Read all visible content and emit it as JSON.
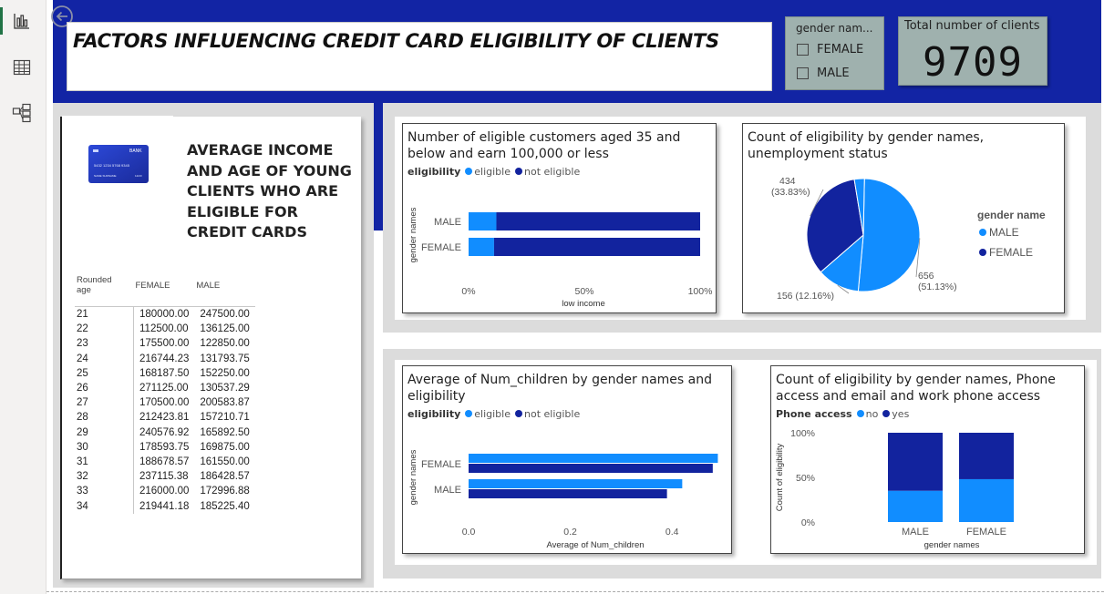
{
  "rail": {
    "items": [
      "report-view",
      "table-view",
      "model-view"
    ]
  },
  "header": {
    "title": "FACTORS INFLUENCING CREDIT CARD ELIGIBILITY OF CLIENTS"
  },
  "slicer": {
    "header": "gender nam...",
    "options": [
      "FEMALE",
      "MALE"
    ]
  },
  "kpi": {
    "label": "Total number of clients",
    "value": "9709"
  },
  "young_panel": {
    "heading": "AVERAGE INCOME AND AGE OF YOUNG CLIENTS WHO ARE ELIGIBLE FOR CREDIT CARDS",
    "card_image": {
      "brand": "BANK",
      "number": "5432 1234 5768 9345",
      "name": "NAME SURNAME",
      "exp": "12/23"
    },
    "columns": [
      "Rounded age",
      "FEMALE",
      "MALE"
    ],
    "rows": [
      [
        "21",
        "180000.00",
        "247500.00"
      ],
      [
        "22",
        "112500.00",
        "136125.00"
      ],
      [
        "23",
        "175500.00",
        "122850.00"
      ],
      [
        "24",
        "216744.23",
        "131793.75"
      ],
      [
        "25",
        "168187.50",
        "152250.00"
      ],
      [
        "26",
        "271125.00",
        "130537.29"
      ],
      [
        "27",
        "170500.00",
        "200583.87"
      ],
      [
        "28",
        "212423.81",
        "157210.71"
      ],
      [
        "29",
        "240576.92",
        "165892.50"
      ],
      [
        "30",
        "178593.75",
        "169875.00"
      ],
      [
        "31",
        "188678.57",
        "161550.00"
      ],
      [
        "32",
        "237115.38",
        "186428.57"
      ],
      [
        "33",
        "216000.00",
        "172996.88"
      ],
      [
        "34",
        "219441.18",
        "185225.40"
      ]
    ]
  },
  "colors": {
    "light": "#118dff",
    "dark": "#12239e"
  },
  "chart_data": [
    {
      "type": "bar",
      "orientation": "horizontal",
      "stacked": "100%",
      "title": "Number of eligible customers aged 35 and below and earn 100,000 or less",
      "legend_title": "eligibility",
      "legend_position": "top-left",
      "ylabel": "gender names",
      "xlabel": "low income",
      "categories": [
        "MALE",
        "FEMALE"
      ],
      "series": [
        {
          "name": "eligible",
          "values": [
            0.12,
            0.11
          ]
        },
        {
          "name": "not eligible",
          "values": [
            0.88,
            0.89
          ]
        }
      ],
      "xticks": [
        "0%",
        "50%",
        "100%"
      ],
      "xlim": [
        0,
        1
      ]
    },
    {
      "type": "pie",
      "title": "Count of eligibility by gender names, unemployment status",
      "legend_title": "gender name",
      "legend_position": "right",
      "legend": [
        "MALE",
        "FEMALE"
      ],
      "slices": [
        {
          "label": "656",
          "pct": "(51.13%)",
          "value": 656,
          "color": "#118dff"
        },
        {
          "label": "156 (12.16%)",
          "pct": "",
          "value": 156,
          "color": "#118dff"
        },
        {
          "label": "434",
          "pct": "(33.83%)",
          "value": 434,
          "color": "#12239e"
        },
        {
          "label": "",
          "pct": "",
          "value": 37,
          "color": "#118dff"
        }
      ]
    },
    {
      "type": "bar",
      "orientation": "horizontal",
      "title": "Average of Num_children by gender names and eligibility",
      "legend_title": "eligibility",
      "legend_position": "top-left",
      "ylabel": "gender names",
      "xlabel": "Average of Num_children",
      "categories": [
        "FEMALE",
        "MALE"
      ],
      "series": [
        {
          "name": "eligible",
          "values": [
            0.49,
            0.42
          ]
        },
        {
          "name": "not eligible",
          "values": [
            0.48,
            0.39
          ]
        }
      ],
      "xticks": [
        "0.0",
        "0.2",
        "0.4"
      ],
      "xlim": [
        0,
        0.5
      ]
    },
    {
      "type": "bar",
      "orientation": "vertical",
      "stacked": "100%",
      "title": "Count of eligibility by gender names, Phone access and email and work phone access",
      "legend_title": "Phone access",
      "legend_position": "top-left",
      "ylabel": "Count of eligibility",
      "xlabel": "gender names",
      "categories": [
        "MALE",
        "FEMALE"
      ],
      "series": [
        {
          "name": "no",
          "values": [
            0.35,
            0.48
          ]
        },
        {
          "name": "yes",
          "values": [
            0.65,
            0.52
          ]
        }
      ],
      "yticks": [
        "100%",
        "50%",
        "0%"
      ],
      "ylim": [
        0,
        1
      ]
    }
  ]
}
